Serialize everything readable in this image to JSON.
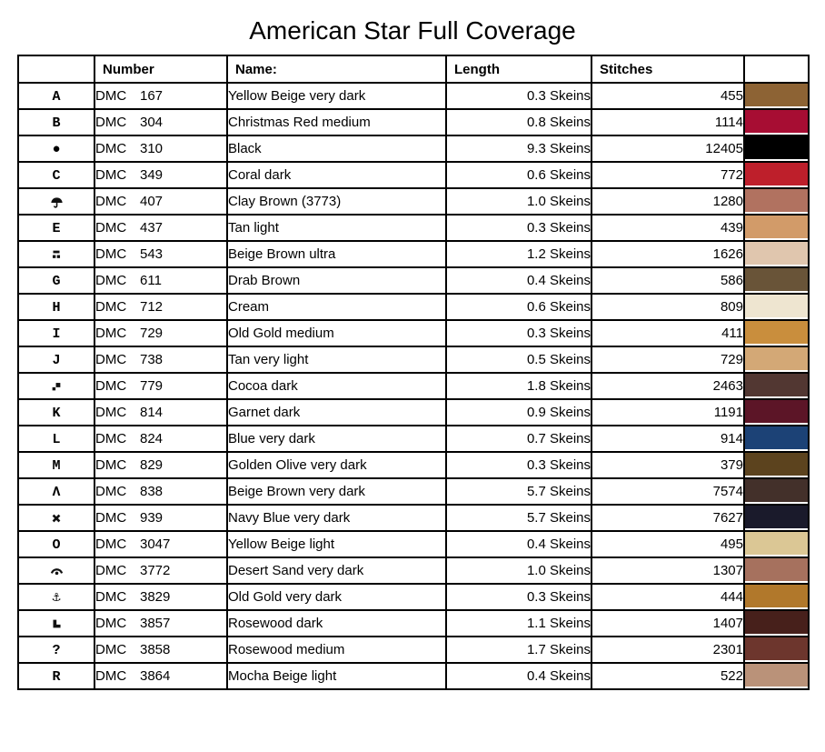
{
  "page": {
    "title": "American Star Full Coverage"
  },
  "table": {
    "headers": {
      "symbol": "",
      "number": "Number",
      "name": "Name:",
      "length": "Length",
      "stitches": "Stitches",
      "swatch": ""
    },
    "rows": [
      {
        "symbol_type": "text",
        "symbol": "A",
        "symbol_name": "letter-a-symbol",
        "brand": "DMC",
        "code": "167",
        "name": "Yellow Beige very dark",
        "length": "0.3 Skeins",
        "stitches": "455",
        "color": "#8D6334"
      },
      {
        "symbol_type": "text",
        "symbol": "B",
        "symbol_name": "letter-b-symbol",
        "brand": "DMC",
        "code": "304",
        "name": "Christmas Red medium",
        "length": "0.8 Skeins",
        "stitches": "1114",
        "color": "#A70D33"
      },
      {
        "symbol_type": "text",
        "symbol": "●",
        "symbol_name": "filled-circle-symbol",
        "brand": "DMC",
        "code": "310",
        "name": "Black",
        "length": "9.3 Skeins",
        "stitches": "12405",
        "color": "#000000"
      },
      {
        "symbol_type": "text",
        "symbol": "C",
        "symbol_name": "letter-c-symbol",
        "brand": "DMC",
        "code": "349",
        "name": "Coral dark",
        "length": "0.6 Skeins",
        "stitches": "772",
        "color": "#BE1F2B"
      },
      {
        "symbol_type": "umbrella",
        "symbol": "",
        "symbol_name": "umbrella-symbol",
        "brand": "DMC",
        "code": "407",
        "name": "Clay Brown (3773)",
        "length": "1.0 Skeins",
        "stitches": "1280",
        "color": "#B17260"
      },
      {
        "symbol_type": "text",
        "symbol": "E",
        "symbol_name": "letter-e-symbol",
        "brand": "DMC",
        "code": "437",
        "name": "Tan light",
        "length": "0.3 Skeins",
        "stitches": "439",
        "color": "#D29B69"
      },
      {
        "symbol_type": "bar2dots",
        "symbol": "",
        "symbol_name": "bar-over-two-dots-symbol",
        "brand": "DMC",
        "code": "543",
        "name": "Beige Brown ultra",
        "length": "1.2 Skeins",
        "stitches": "1626",
        "color": "#E0C6AE"
      },
      {
        "symbol_type": "text",
        "symbol": "G",
        "symbol_name": "letter-g-symbol",
        "brand": "DMC",
        "code": "611",
        "name": "Drab Brown",
        "length": "0.4 Skeins",
        "stitches": "586",
        "color": "#695438"
      },
      {
        "symbol_type": "text",
        "symbol": "H",
        "symbol_name": "letter-h-symbol",
        "brand": "DMC",
        "code": "712",
        "name": "Cream",
        "length": "0.6 Skeins",
        "stitches": "809",
        "color": "#EEE5D0"
      },
      {
        "symbol_type": "text",
        "symbol": "I",
        "symbol_name": "letter-i-symbol",
        "brand": "DMC",
        "code": "729",
        "name": "Old Gold medium",
        "length": "0.3 Skeins",
        "stitches": "411",
        "color": "#C98E3D"
      },
      {
        "symbol_type": "text",
        "symbol": "J",
        "symbol_name": "letter-j-symbol",
        "brand": "DMC",
        "code": "738",
        "name": "Tan very light",
        "length": "0.5 Skeins",
        "stitches": "729",
        "color": "#D3A876"
      },
      {
        "symbol_type": "twosquares",
        "symbol": "",
        "symbol_name": "two-diagonal-squares-symbol",
        "brand": "DMC",
        "code": "779",
        "name": "Cocoa dark",
        "length": "1.8 Skeins",
        "stitches": "2463",
        "color": "#523732"
      },
      {
        "symbol_type": "text",
        "symbol": "K",
        "symbol_name": "letter-k-symbol",
        "brand": "DMC",
        "code": "814",
        "name": "Garnet dark",
        "length": "0.9 Skeins",
        "stitches": "1191",
        "color": "#5C1527"
      },
      {
        "symbol_type": "text",
        "symbol": "L",
        "symbol_name": "letter-l-symbol",
        "brand": "DMC",
        "code": "824",
        "name": "Blue very dark",
        "length": "0.7 Skeins",
        "stitches": "914",
        "color": "#1C4276"
      },
      {
        "symbol_type": "text",
        "symbol": "M",
        "symbol_name": "letter-m-symbol",
        "brand": "DMC",
        "code": "829",
        "name": "Golden Olive very dark",
        "length": "0.3 Skeins",
        "stitches": "379",
        "color": "#5C431E"
      },
      {
        "symbol_type": "text",
        "symbol": "Λ",
        "symbol_name": "lambda-symbol",
        "brand": "DMC",
        "code": "838",
        "name": "Beige Brown very dark",
        "length": "5.7 Skeins",
        "stitches": "7574",
        "color": "#43302A"
      },
      {
        "symbol_type": "heavyx",
        "symbol": "",
        "symbol_name": "heavy-x-symbol",
        "brand": "DMC",
        "code": "939",
        "name": "Navy Blue very dark",
        "length": "5.7 Skeins",
        "stitches": "7627",
        "color": "#1A1A2B"
      },
      {
        "symbol_type": "text",
        "symbol": "O",
        "symbol_name": "letter-o-symbol",
        "brand": "DMC",
        "code": "3047",
        "name": "Yellow Beige light",
        "length": "0.4 Skeins",
        "stitches": "495",
        "color": "#DBC795"
      },
      {
        "symbol_type": "arcdot",
        "symbol": "",
        "symbol_name": "arc-over-dot-symbol",
        "brand": "DMC",
        "code": "3772",
        "name": "Desert Sand very dark",
        "length": "1.0 Skeins",
        "stitches": "1307",
        "color": "#A6715E"
      },
      {
        "symbol_type": "text",
        "symbol": "⚓",
        "symbol_name": "anchor-symbol",
        "brand": "DMC",
        "code": "3829",
        "name": "Old Gold very dark",
        "length": "0.3 Skeins",
        "stitches": "444",
        "color": "#B1782B"
      },
      {
        "symbol_type": "lblock",
        "symbol": "",
        "symbol_name": "solid-l-block-symbol",
        "brand": "DMC",
        "code": "3857",
        "name": "Rosewood dark",
        "length": "1.1 Skeins",
        "stitches": "1407",
        "color": "#47201B"
      },
      {
        "symbol_type": "text",
        "symbol": "?",
        "symbol_name": "question-mark-symbol",
        "brand": "DMC",
        "code": "3858",
        "name": "Rosewood medium",
        "length": "1.7 Skeins",
        "stitches": "2301",
        "color": "#6D362D"
      },
      {
        "symbol_type": "text",
        "symbol": "R",
        "symbol_name": "letter-r-symbol",
        "brand": "DMC",
        "code": "3864",
        "name": "Mocha Beige light",
        "length": "0.4 Skeins",
        "stitches": "522",
        "color": "#BA9279"
      }
    ]
  }
}
